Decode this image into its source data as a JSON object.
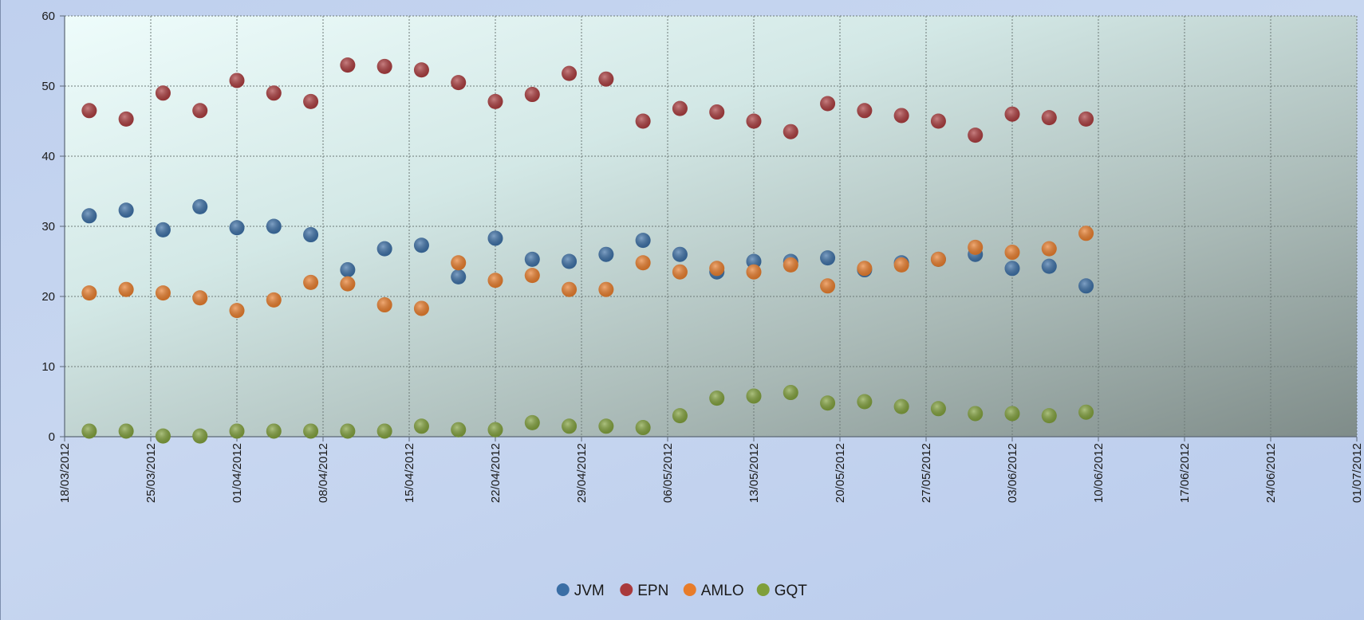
{
  "chart_data": {
    "type": "scatter",
    "title": "",
    "xlabel": "",
    "ylabel": "",
    "xlim": [
      "2012-03-18",
      "2012-07-01"
    ],
    "ylim": [
      0,
      60
    ],
    "y_ticks": [
      0,
      10,
      20,
      30,
      40,
      50,
      60
    ],
    "x_ticks": [
      "18/03/2012",
      "25/03/2012",
      "01/04/2012",
      "08/04/2012",
      "15/04/2012",
      "22/04/2012",
      "29/04/2012",
      "06/05/2012",
      "13/05/2012",
      "20/05/2012",
      "27/05/2012",
      "03/06/2012",
      "10/06/2012",
      "17/06/2012",
      "24/06/2012",
      "01/07/2012"
    ],
    "grid": true,
    "legend_position": "bottom",
    "x": [
      "2012-03-20",
      "2012-03-23",
      "2012-03-26",
      "2012-03-29",
      "2012-04-01",
      "2012-04-04",
      "2012-04-07",
      "2012-04-10",
      "2012-04-13",
      "2012-04-16",
      "2012-04-19",
      "2012-04-22",
      "2012-04-25",
      "2012-04-28",
      "2012-05-01",
      "2012-05-04",
      "2012-05-07",
      "2012-05-10",
      "2012-05-13",
      "2012-05-16",
      "2012-05-19",
      "2012-05-22",
      "2012-05-25",
      "2012-05-28",
      "2012-05-31",
      "2012-06-03",
      "2012-06-06",
      "2012-06-09"
    ],
    "series": [
      {
        "name": "JVM",
        "color": "#3a6ea5",
        "values": [
          31.5,
          32.3,
          29.5,
          32.8,
          29.8,
          30.0,
          28.8,
          23.8,
          26.8,
          27.3,
          22.8,
          28.3,
          25.3,
          25.0,
          26.0,
          28.0,
          26.0,
          23.5,
          25.0,
          25.0,
          25.5,
          23.8,
          24.8,
          25.3,
          26.0,
          24.0,
          24.3,
          21.5
        ]
      },
      {
        "name": "EPN",
        "color": "#a93a3c",
        "values": [
          46.5,
          45.3,
          49.0,
          46.5,
          50.8,
          49.0,
          47.8,
          53.0,
          52.8,
          52.3,
          50.5,
          47.8,
          48.8,
          51.8,
          51.0,
          45.0,
          46.8,
          46.3,
          45.0,
          43.5,
          47.5,
          46.5,
          45.8,
          45.0,
          43.0,
          46.0,
          45.5,
          45.3
        ]
      },
      {
        "name": "AMLO",
        "color": "#e87c2a",
        "values": [
          20.5,
          21.0,
          20.5,
          19.8,
          18.0,
          19.5,
          22.0,
          21.8,
          18.8,
          18.3,
          24.8,
          22.3,
          23.0,
          21.0,
          21.0,
          24.8,
          23.5,
          24.0,
          23.5,
          24.5,
          21.5,
          24.0,
          24.5,
          25.3,
          27.0,
          26.3,
          26.8,
          29.0
        ]
      },
      {
        "name": "GQT",
        "color": "#7f9f3a",
        "values": [
          0.8,
          0.8,
          0.1,
          0.1,
          0.8,
          0.8,
          0.8,
          0.8,
          0.8,
          1.5,
          1.0,
          1.0,
          2.0,
          1.5,
          1.5,
          1.3,
          3.0,
          5.5,
          5.8,
          6.3,
          4.8,
          5.0,
          4.3,
          4.0,
          3.3,
          3.3,
          3.0,
          3.5
        ]
      }
    ]
  }
}
